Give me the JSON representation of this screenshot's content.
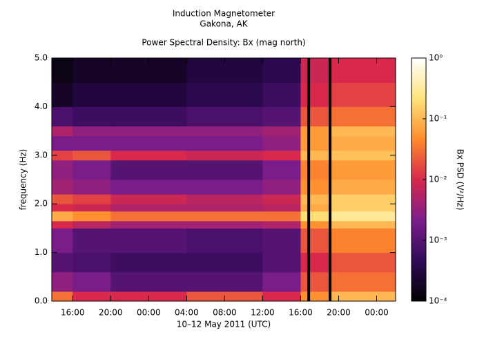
{
  "chart_data": {
    "type": "spectrogram",
    "title": "Induction Magnetometer",
    "subtitle": "Gakona, AK",
    "plot_title": "Power Spectral Density: Bx (mag north)",
    "xlabel": "10–12 May 2011 (UTC)",
    "ylabel": "frequency (Hz)",
    "colorbar_label": "Bx PSD (V²/Hz)",
    "xlim": [
      13.8,
      50.0
    ],
    "xticks": [
      {
        "value": 16,
        "label": "16:00"
      },
      {
        "value": 20,
        "label": "20:00"
      },
      {
        "value": 24,
        "label": "00:00"
      },
      {
        "value": 28,
        "label": "04:00"
      },
      {
        "value": 32,
        "label": "08:00"
      },
      {
        "value": 36,
        "label": "12:00"
      },
      {
        "value": 40,
        "label": "16:00"
      },
      {
        "value": 44,
        "label": "20:00"
      },
      {
        "value": 48,
        "label": "00:00"
      }
    ],
    "ylim": [
      0,
      5
    ],
    "yticks": [
      {
        "value": 0,
        "label": "0.0"
      },
      {
        "value": 1,
        "label": "1.0"
      },
      {
        "value": 2,
        "label": "2.0"
      },
      {
        "value": 3,
        "label": "3.0"
      },
      {
        "value": 4,
        "label": "4.0"
      },
      {
        "value": 5,
        "label": "5.0"
      }
    ],
    "zlim": [
      0.0001,
      1
    ],
    "zscale": "log",
    "zticks": [
      {
        "value": 1,
        "label": "10⁰"
      },
      {
        "value": 0.1,
        "label": "10⁻¹"
      },
      {
        "value": 0.01,
        "label": "10⁻²"
      },
      {
        "value": 0.001,
        "label": "10⁻³"
      },
      {
        "value": 0.0001,
        "label": "10⁻⁴"
      }
    ],
    "colormap": [
      "#000000",
      "#300a58",
      "#7c1e8c",
      "#d8284c",
      "#ff8c2c",
      "#ffe27a",
      "#ffffff"
    ],
    "time_bins": [
      13.8,
      16,
      20,
      28,
      36,
      40,
      43,
      50
    ],
    "freq_bins": [
      0,
      0.2,
      0.6,
      1.0,
      1.5,
      1.65,
      1.85,
      2.0,
      2.2,
      2.5,
      2.9,
      3.1,
      3.4,
      3.6,
      4.0,
      4.5,
      5.0
    ],
    "z": [
      [
        0.03,
        0.01,
        0.01,
        0.02,
        0.01,
        0.05,
        0.1
      ],
      [
        0.003,
        0.002,
        0.001,
        0.001,
        0.002,
        0.02,
        0.03
      ],
      [
        0.001,
        0.0008,
        0.0006,
        0.0006,
        0.001,
        0.01,
        0.02
      ],
      [
        0.002,
        0.001,
        0.001,
        0.0008,
        0.001,
        0.02,
        0.04
      ],
      [
        0.01,
        0.006,
        0.004,
        0.004,
        0.005,
        0.05,
        0.1
      ],
      [
        0.08,
        0.05,
        0.03,
        0.03,
        0.03,
        0.2,
        0.3
      ],
      [
        0.01,
        0.008,
        0.005,
        0.005,
        0.006,
        0.08,
        0.15
      ],
      [
        0.02,
        0.015,
        0.008,
        0.006,
        0.008,
        0.1,
        0.15
      ],
      [
        0.004,
        0.003,
        0.002,
        0.002,
        0.003,
        0.05,
        0.08
      ],
      [
        0.003,
        0.002,
        0.001,
        0.001,
        0.002,
        0.04,
        0.06
      ],
      [
        0.015,
        0.02,
        0.01,
        0.008,
        0.01,
        0.1,
        0.12
      ],
      [
        0.002,
        0.002,
        0.002,
        0.002,
        0.003,
        0.06,
        0.08
      ],
      [
        0.005,
        0.003,
        0.003,
        0.003,
        0.004,
        0.06,
        0.1
      ],
      [
        0.0008,
        0.0006,
        0.0006,
        0.0008,
        0.001,
        0.02,
        0.03
      ],
      [
        0.0002,
        0.0003,
        0.0003,
        0.0004,
        0.0006,
        0.01,
        0.015
      ],
      [
        0.00015,
        0.0002,
        0.0002,
        0.0003,
        0.0004,
        0.008,
        0.01
      ]
    ],
    "markers_x": [
      40.85,
      43.1
    ],
    "marker_color": "#000000"
  }
}
